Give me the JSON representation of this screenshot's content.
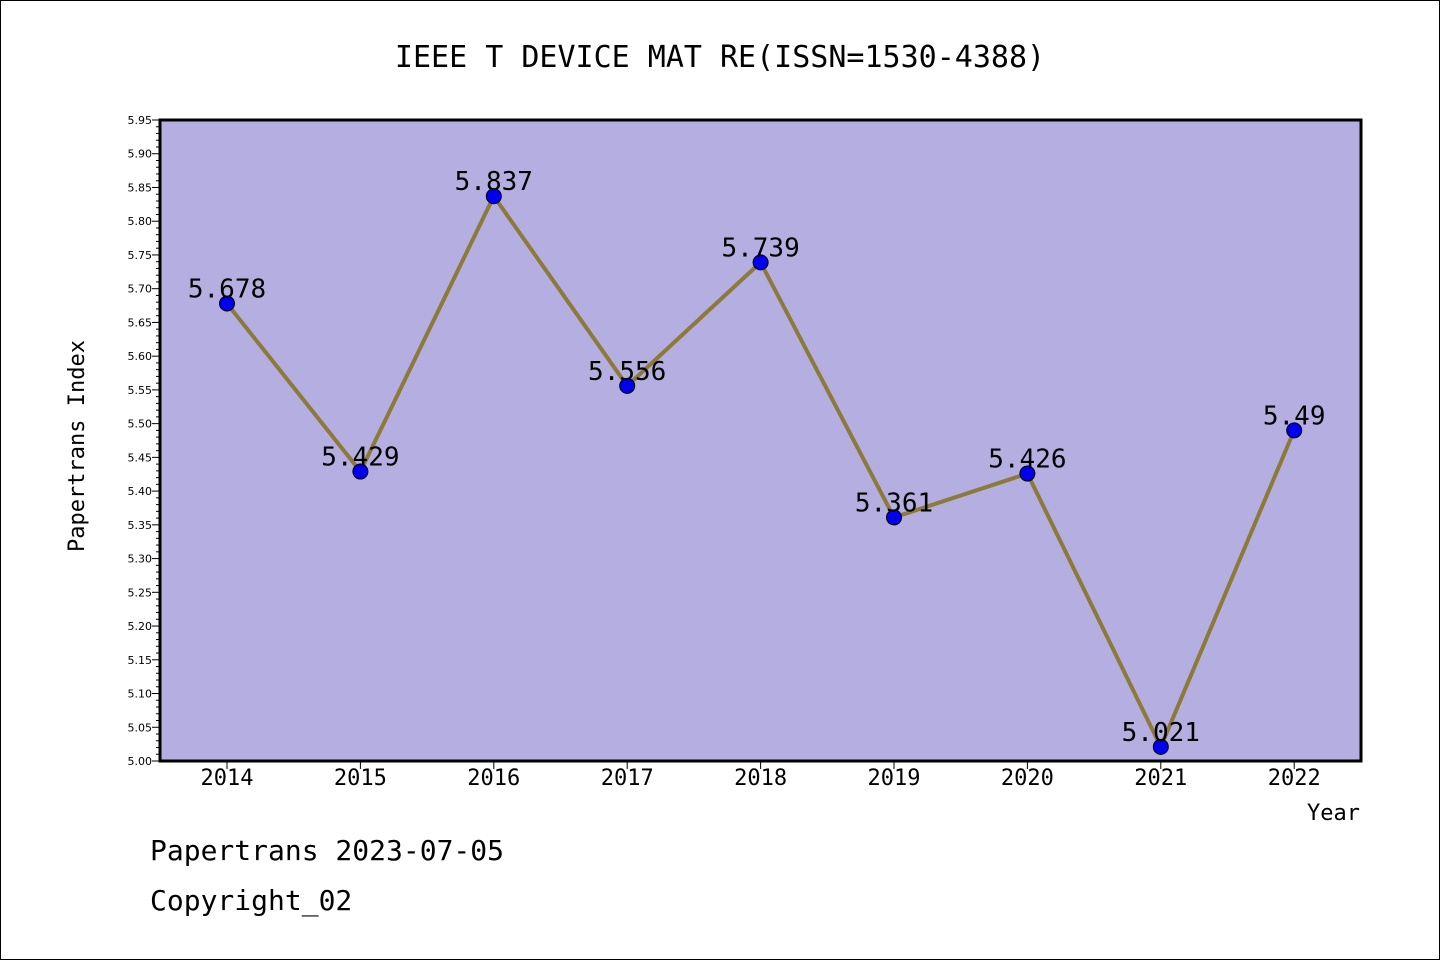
{
  "chart_data": {
    "type": "line",
    "title": "IEEE T DEVICE MAT RE(ISSN=1530-4388)",
    "xlabel": "Year",
    "ylabel": "Papertrans Index",
    "categories": [
      "2014",
      "2015",
      "2016",
      "2017",
      "2018",
      "2019",
      "2020",
      "2021",
      "2022"
    ],
    "series": [
      {
        "values": [
          5.678,
          5.429,
          5.837,
          5.556,
          5.739,
          5.361,
          5.426,
          5.021,
          5.49
        ]
      }
    ],
    "data_labels": [
      "5.678",
      "5.429",
      "5.837",
      "5.556",
      "5.739",
      "5.361",
      "5.426",
      "5.021",
      "5.49"
    ],
    "ylim": [
      5.0,
      5.95
    ],
    "yticks": [
      "5.00",
      "5.05",
      "5.10",
      "5.15",
      "5.20",
      "5.25",
      "5.30",
      "5.35",
      "5.40",
      "5.45",
      "5.50",
      "5.55",
      "5.60",
      "5.65",
      "5.70",
      "5.75",
      "5.80",
      "5.85",
      "5.90",
      "5.95"
    ],
    "plot_background": "#b5aee0",
    "line_color": "#8b7a3a",
    "marker_color": "#0000ee",
    "grid": false,
    "legend": "none"
  },
  "footer": {
    "line1": "Papertrans 2023-07-05",
    "line2": "Copyright_02"
  }
}
